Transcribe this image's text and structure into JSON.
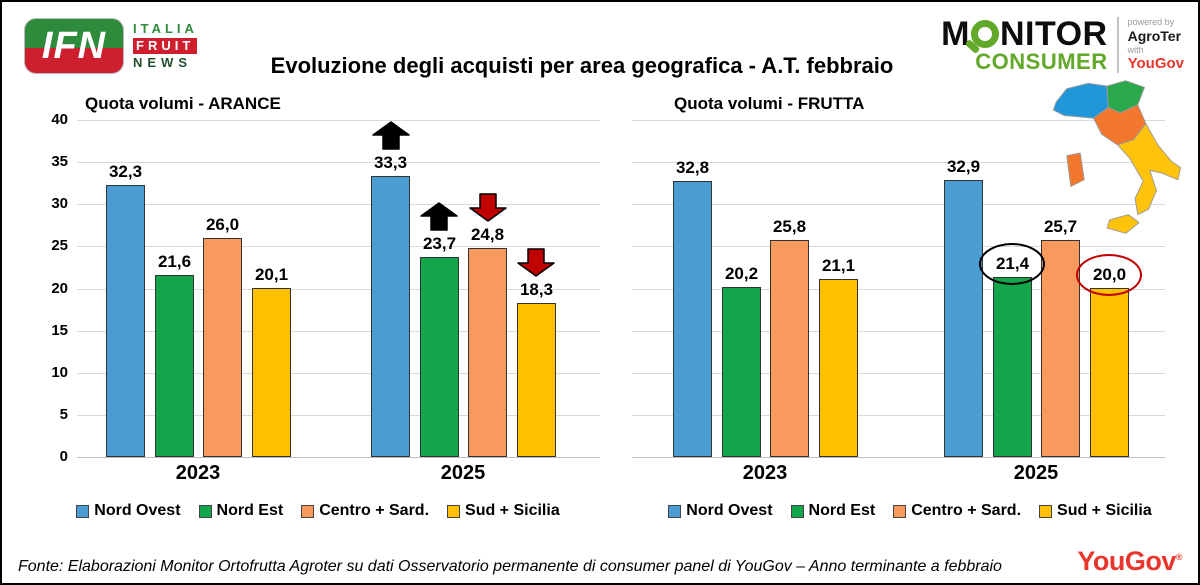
{
  "header": {
    "title": "Evoluzione degli acquisti per area geografica - A.T. febbraio",
    "ifn_logo": {
      "acronym": "IFN",
      "line1": "ITALIA",
      "line2": "FRUIT",
      "line3": "NEWS"
    },
    "monitor_logo": {
      "word_prefix": "M",
      "word_suffix": "NITOR",
      "consumer": "CONSUMER",
      "powered_by": "powered by",
      "agroter": "AgroTer",
      "with_word": "with",
      "yougov": "YouGov"
    }
  },
  "colors": {
    "blue": "#4B9CD3",
    "green": "#13A549",
    "orange": "#F8995D",
    "yellow": "#FFC000",
    "annotation_red": "#C00000",
    "grid": "#D9D9D9",
    "bar_border": "#333333",
    "yougov_red": "#E8362D",
    "ifn_green": "#2E8B3C",
    "ifn_red": "#CE1F2F",
    "monitor_green": "#62A829",
    "map": {
      "north_west": "#2196D9",
      "north_east": "#2BA84A",
      "center_sardinia": "#F4772E",
      "south_sicily": "#FFC30B"
    }
  },
  "chart_data": [
    {
      "type": "bar",
      "title": "Quota volumi - ARANCE",
      "categories": [
        "2023",
        "2025"
      ],
      "series": [
        {
          "name": "Nord Ovest",
          "color_key": "blue",
          "values": [
            32.3,
            33.3
          ]
        },
        {
          "name": "Nord Est",
          "color_key": "green",
          "values": [
            21.6,
            23.7
          ]
        },
        {
          "name": "Centro + Sard.",
          "color_key": "orange",
          "values": [
            26.0,
            24.8
          ]
        },
        {
          "name": "Sud + Sicilia",
          "color_key": "yellow",
          "values": [
            20.1,
            18.3
          ]
        }
      ],
      "ylabel": "",
      "ylim": [
        0,
        40
      ],
      "yticks": [
        0,
        5,
        10,
        15,
        20,
        25,
        30,
        35,
        40
      ],
      "grid": true,
      "legend_position": "bottom",
      "annotations": [
        {
          "category_index": 1,
          "series_index": 0,
          "kind": "arrow-up",
          "color": "black"
        },
        {
          "category_index": 1,
          "series_index": 1,
          "kind": "arrow-up",
          "color": "black"
        },
        {
          "category_index": 1,
          "series_index": 2,
          "kind": "arrow-down",
          "color": "red"
        },
        {
          "category_index": 1,
          "series_index": 3,
          "kind": "arrow-down",
          "color": "red"
        }
      ]
    },
    {
      "type": "bar",
      "title": "Quota volumi - FRUTTA",
      "categories": [
        "2023",
        "2025"
      ],
      "series": [
        {
          "name": "Nord Ovest",
          "color_key": "blue",
          "values": [
            32.8,
            32.9
          ]
        },
        {
          "name": "Nord Est",
          "color_key": "green",
          "values": [
            20.2,
            21.4
          ]
        },
        {
          "name": "Centro + Sard.",
          "color_key": "orange",
          "values": [
            25.8,
            25.7
          ]
        },
        {
          "name": "Sud + Sicilia",
          "color_key": "yellow",
          "values": [
            21.1,
            20.0
          ]
        }
      ],
      "ylabel": "",
      "ylim": [
        0,
        40
      ],
      "yticks": [
        0,
        5,
        10,
        15,
        20,
        25,
        30,
        35,
        40
      ],
      "grid": true,
      "legend_position": "bottom",
      "annotations": [
        {
          "category_index": 1,
          "series_index": 1,
          "kind": "circle",
          "color": "black"
        },
        {
          "category_index": 1,
          "series_index": 3,
          "kind": "circle",
          "color": "red"
        }
      ]
    }
  ],
  "legend": {
    "items": [
      {
        "label": "Nord Ovest",
        "color_key": "blue"
      },
      {
        "label": "Nord Est",
        "color_key": "green"
      },
      {
        "label": "Centro + Sard.",
        "color_key": "orange"
      },
      {
        "label": "Sud + Sicilia",
        "color_key": "yellow"
      }
    ]
  },
  "footer": {
    "source": "Fonte: Elaborazioni Monitor Ortofrutta Agroter su dati Osservatorio permanente di consumer panel di YouGov – Anno terminante a febbraio",
    "yougov_logo": "YouGov"
  }
}
